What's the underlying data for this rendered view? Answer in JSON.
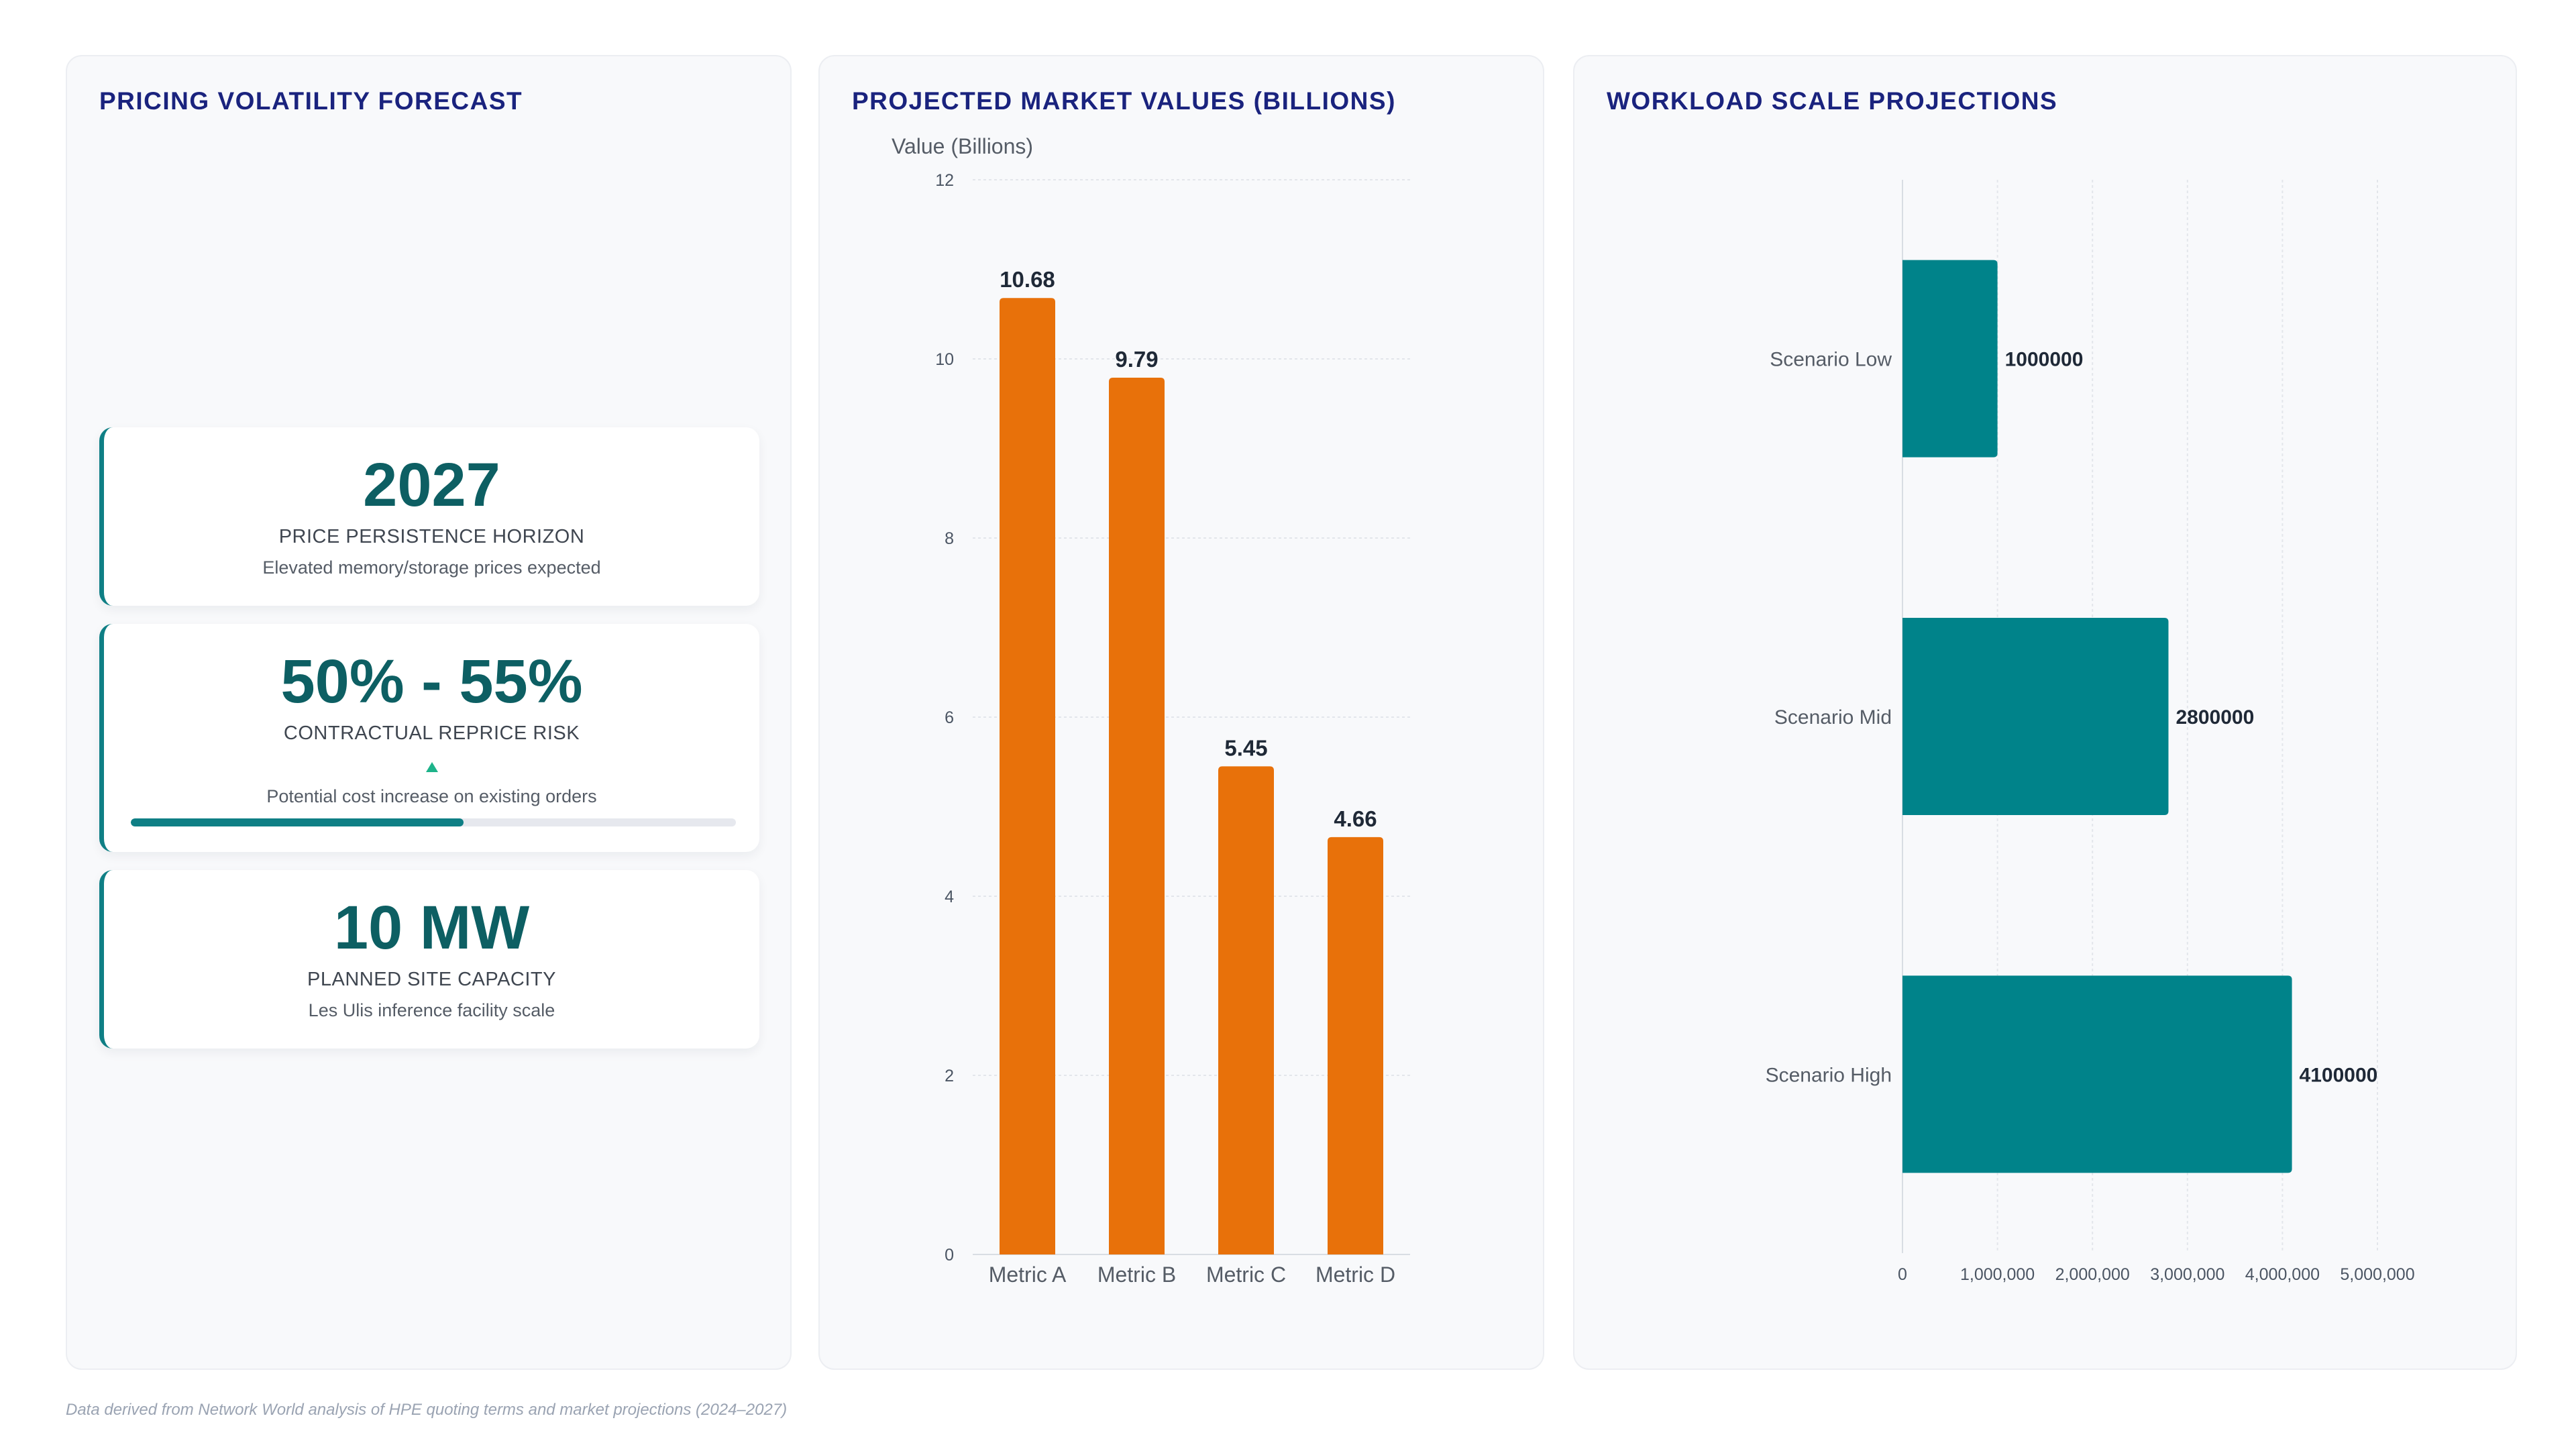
{
  "panels": {
    "left": {
      "title": "PRICING VOLATILITY FORECAST"
    },
    "middle": {
      "title": "PROJECTED MARKET VALUES (BILLIONS)"
    },
    "right": {
      "title": "WORKLOAD SCALE PROJECTIONS"
    }
  },
  "kpis": [
    {
      "value": "2027",
      "label": "PRICE PERSISTENCE HORIZON",
      "sub": "Elevated memory/storage prices expected"
    },
    {
      "value": "50% - 55%",
      "label": "CONTRACTUAL REPRICE RISK",
      "sub": "Potential cost increase on existing orders",
      "progress": 0.55,
      "trend_icon": "trend-up-icon"
    },
    {
      "value": "10 MW",
      "label": "PLANNED SITE CAPACITY",
      "sub": "Les Ulis inference facility scale"
    }
  ],
  "colors": {
    "bar_orange": "#e8710a",
    "bar_teal": "#00838a",
    "kpi_accent": "#0f7f85",
    "kpi_value": "#0d5f63",
    "title_navy": "#1a237e"
  },
  "chart_data": [
    {
      "type": "bar",
      "orientation": "vertical",
      "title": "PROJECTED MARKET VALUES (BILLIONS)",
      "ylabel": "Value (Billions)",
      "categories": [
        "Metric A",
        "Metric B",
        "Metric C",
        "Metric D"
      ],
      "values": [
        10.68,
        9.79,
        5.45,
        4.66
      ],
      "data_labels": [
        "10.68",
        "9.79",
        "5.45",
        "4.66"
      ],
      "ylim": [
        0,
        12
      ],
      "yticks": [
        0,
        2,
        4,
        6,
        8,
        10,
        12
      ],
      "ytick_labels": [
        "0",
        "2",
        "4",
        "6",
        "8",
        "10",
        "12"
      ],
      "grid": true
    },
    {
      "type": "bar",
      "orientation": "horizontal",
      "title": "WORKLOAD SCALE PROJECTIONS",
      "categories": [
        "Scenario Low",
        "Scenario Mid",
        "Scenario High"
      ],
      "values": [
        1000000,
        2800000,
        4100000
      ],
      "data_labels": [
        "1000000",
        "2800000",
        "4100000"
      ],
      "xlim": [
        0,
        5000000
      ],
      "xticks": [
        0,
        1000000,
        2000000,
        3000000,
        4000000,
        5000000
      ],
      "xtick_labels": [
        "0",
        "1,000,000",
        "2,000,000",
        "3,000,000",
        "4,000,000",
        "5,000,000"
      ],
      "grid": true
    }
  ],
  "footnote": "Data derived from Network World analysis of HPE quoting terms and market projections (2024–2027)"
}
